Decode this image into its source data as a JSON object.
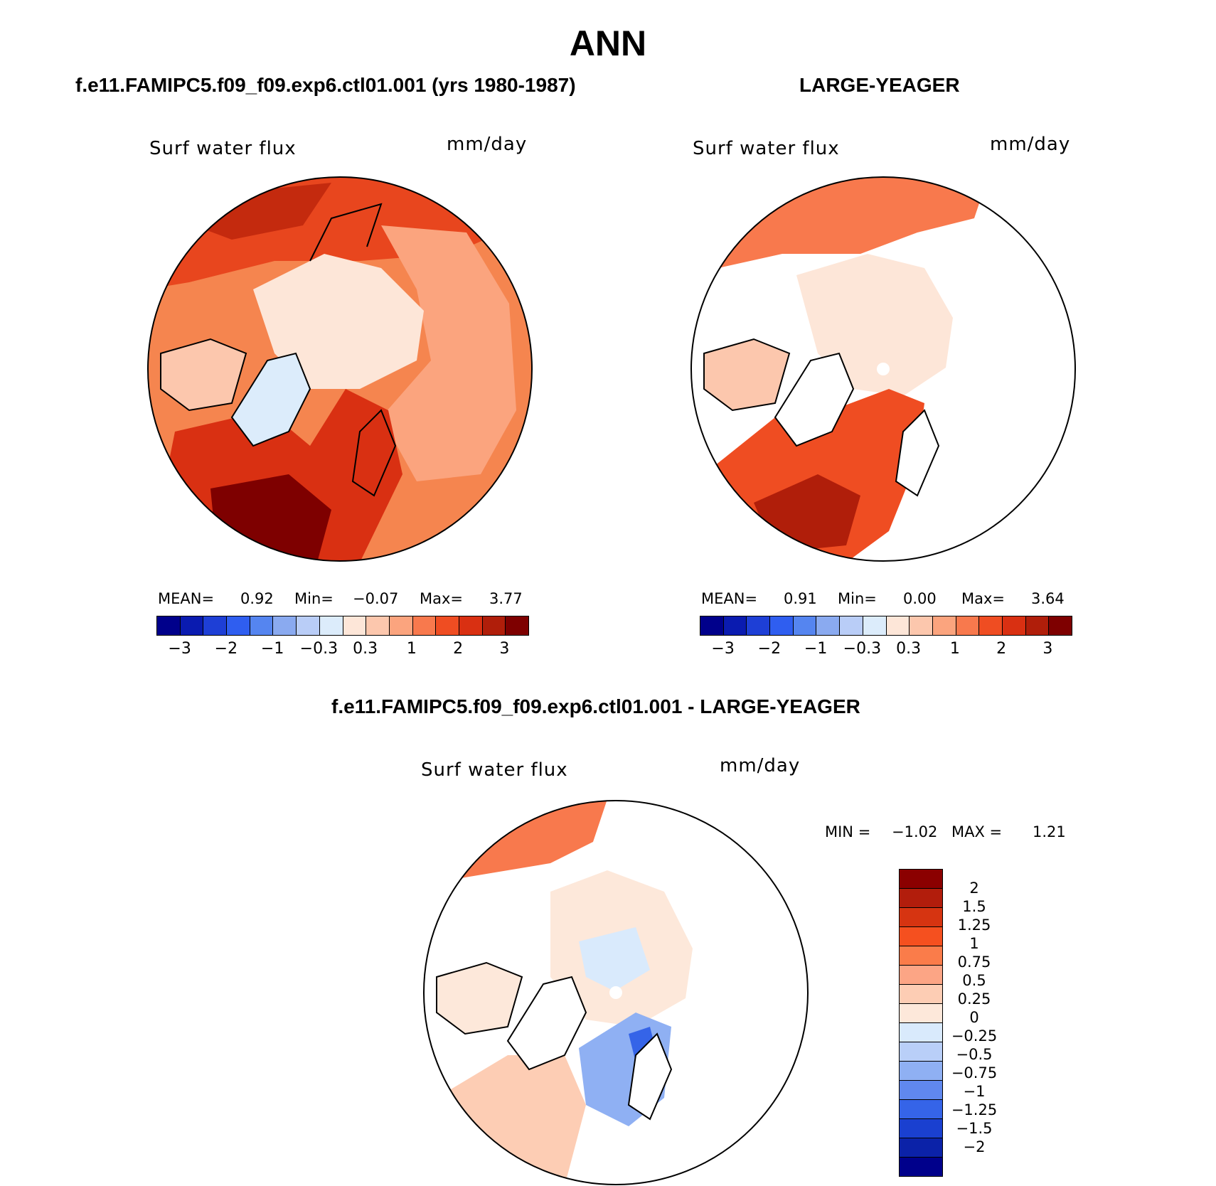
{
  "title": "ANN",
  "panel_left": {
    "heading": "f.e11.FAMIPC5.f09_f09.exp6.ctl01.001 (yrs 1980-1987)",
    "variable": "Surf water flux",
    "units": "mm/day",
    "stats": {
      "mean_label": "MEAN=",
      "mean": "0.92",
      "min_label": "Min=",
      "min": "−0.07",
      "max_label": "Max=",
      "max": "3.77"
    }
  },
  "panel_right": {
    "heading": "LARGE-YEAGER",
    "variable": "Surf water flux",
    "units": "mm/day",
    "stats": {
      "mean_label": "MEAN=",
      "mean": "0.91",
      "min_label": "Min=",
      "min": "0.00",
      "max_label": "Max=",
      "max": "3.64"
    }
  },
  "panel_diff": {
    "heading": "f.e11.FAMIPC5.f09_f09.exp6.ctl01.001 - LARGE-YEAGER",
    "variable": "Surf water flux",
    "units": "mm/day",
    "stats": {
      "min_label": "MIN =",
      "min": "−1.02",
      "max_label": "MAX =",
      "max": "1.21"
    }
  },
  "colorbar_abs": {
    "colors": [
      "#00008b",
      "#0a1bb0",
      "#1e3fd6",
      "#2f5ef0",
      "#5585f0",
      "#8aaaf0",
      "#b9cdf7",
      "#dcecfb",
      "#fde6d8",
      "#fcc7ad",
      "#fba47e",
      "#f8794d",
      "#ef4d22",
      "#d93012",
      "#b01e0a",
      "#7e0000"
    ],
    "tick_labels": [
      "−3",
      "−2",
      "−1",
      "−0.3",
      "0.3",
      "1",
      "2",
      "3"
    ]
  },
  "colorbar_diff": {
    "colors_top_to_bottom": [
      "#8b0000",
      "#b21d0c",
      "#d63411",
      "#f5501f",
      "#fa7c4a",
      "#fca585",
      "#fdcdb4",
      "#fde8da",
      "#d9eafc",
      "#b9cff8",
      "#8fb0f3",
      "#6088ef",
      "#3564e8",
      "#1a40d0",
      "#0b22a8",
      "#00008b"
    ],
    "labels_top_to_bottom": [
      "2",
      "1.5",
      "1.25",
      "1",
      "0.75",
      "0.5",
      "0.25",
      "0",
      "−0.25",
      "−0.5",
      "−0.75",
      "−1",
      "−1.25",
      "−1.5",
      "−2"
    ]
  },
  "map_fill": {
    "left_ocean": "#f5854f",
    "left_arctic": "#fde6d8",
    "left_greenland": "#dcecfb",
    "left_atlantic": "#d93012",
    "right_arctic": "#fde6d8",
    "right_atlantic": "#e8461e",
    "diff_arctic": "#fde8da",
    "diff_blue": "#8fb0f3",
    "diff_red": "#f8794d"
  }
}
